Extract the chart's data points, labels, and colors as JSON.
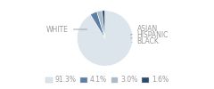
{
  "slices": [
    91.3,
    4.1,
    3.0,
    1.6
  ],
  "labels": [
    "WHITE",
    "ASIAN",
    "HISPANIC",
    "BLACK"
  ],
  "colors": [
    "#dce4ec",
    "#5c7fa3",
    "#a9bac8",
    "#2b4970"
  ],
  "legend_colors": [
    "#dce4ec",
    "#5c7fa3",
    "#a9bac8",
    "#2b4970"
  ],
  "legend_labels": [
    "91.3%",
    "4.1%",
    "3.0%",
    "1.6%"
  ],
  "text_color": "#999999",
  "font_size": 5.5,
  "startangle": 90
}
